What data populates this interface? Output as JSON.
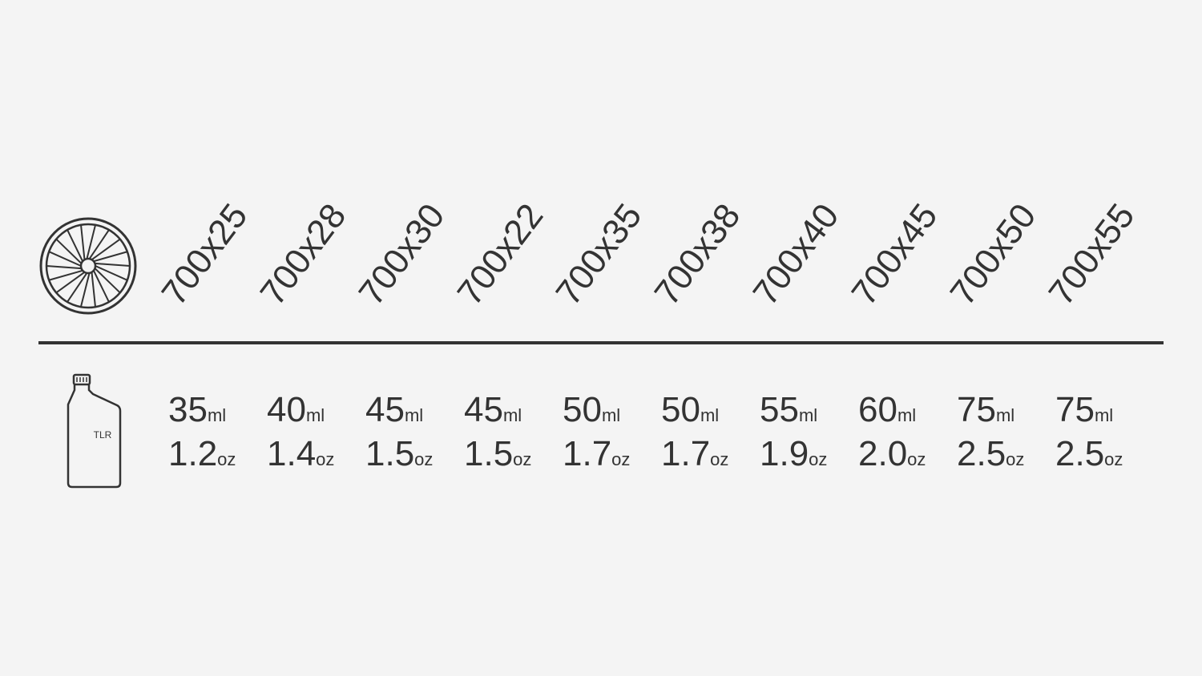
{
  "wheel_icon": "bicycle-wheel-icon",
  "bottle_icon": "sealant-bottle-icon",
  "bottle_label": "TLR",
  "units": {
    "ml": "ml",
    "oz": "oz"
  },
  "columns": [
    {
      "size": "700x25",
      "ml": "35",
      "oz": "1.2"
    },
    {
      "size": "700x28",
      "ml": "40",
      "oz": "1.4"
    },
    {
      "size": "700x30",
      "ml": "45",
      "oz": "1.5"
    },
    {
      "size": "700x22",
      "ml": "45",
      "oz": "1.5"
    },
    {
      "size": "700x35",
      "ml": "50",
      "oz": "1.7"
    },
    {
      "size": "700x38",
      "ml": "50",
      "oz": "1.7"
    },
    {
      "size": "700x40",
      "ml": "55",
      "oz": "1.9"
    },
    {
      "size": "700x45",
      "ml": "60",
      "oz": "2.0"
    },
    {
      "size": "700x50",
      "ml": "75",
      "oz": "2.5"
    },
    {
      "size": "700x55",
      "ml": "75",
      "oz": "2.5"
    }
  ]
}
